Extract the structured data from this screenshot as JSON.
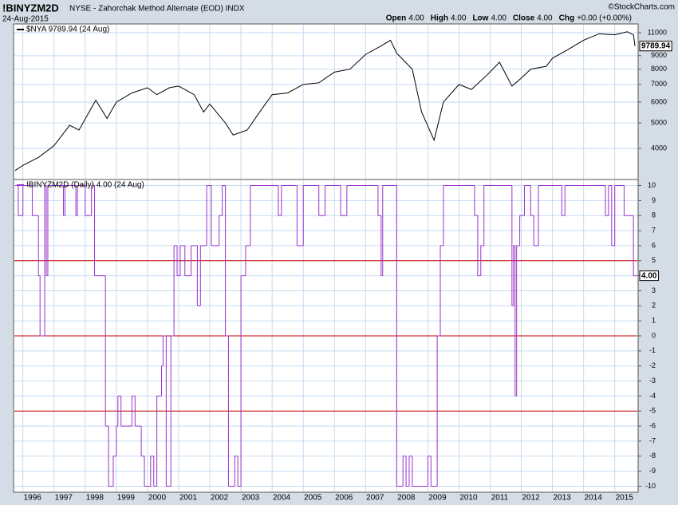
{
  "header": {
    "symbol": "!BINYZM2D",
    "description": "NYSE - Zahorchak Method Alternate (EOD) INDX",
    "date": "24-Aug-2015",
    "credit": "©StockCharts.com",
    "quote": [
      {
        "label": "Open",
        "value": "4.00"
      },
      {
        "label": "High",
        "value": "4.00"
      },
      {
        "label": "Low",
        "value": "4.00"
      },
      {
        "label": "Close",
        "value": "4.00"
      },
      {
        "label": "Chg",
        "value": "+0.00 (+0.00%)"
      }
    ]
  },
  "chart_data": [
    {
      "type": "line",
      "log_scale": true,
      "grid": true,
      "xlim": [
        1995.7,
        2015.75
      ],
      "xticks": [
        1996,
        1997,
        1998,
        1999,
        2000,
        2001,
        2002,
        2003,
        2004,
        2005,
        2006,
        2007,
        2008,
        2009,
        2010,
        2011,
        2012,
        2013,
        2014,
        2015
      ],
      "ylim": [
        3050,
        11880
      ],
      "yticks": [
        4000,
        5000,
        6000,
        7000,
        8000,
        9000,
        11000
      ],
      "last_label": "9789.94",
      "series": [
        {
          "name": "$NYA 9789.94 (24 Aug)",
          "color": "#000000",
          "x": [
            1995.75,
            1996.0,
            1996.5,
            1997.0,
            1997.5,
            1997.8,
            1998.34,
            1998.7,
            1999.0,
            1999.5,
            2000.0,
            2000.3,
            2000.7,
            2001.0,
            2001.5,
            2001.8,
            2002.0,
            2002.5,
            2002.75,
            2003.2,
            2003.6,
            2004.0,
            2004.5,
            2005.0,
            2005.5,
            2006.0,
            2006.5,
            2007.0,
            2007.5,
            2007.8,
            2008.0,
            2008.5,
            2008.8,
            2009.2,
            2009.5,
            2010.0,
            2010.4,
            2010.9,
            2011.3,
            2011.7,
            2012.0,
            2012.3,
            2012.8,
            2013.0,
            2013.5,
            2014.0,
            2014.5,
            2015.0,
            2015.4,
            2015.6,
            2015.65
          ],
          "values": [
            3300,
            3450,
            3700,
            4100,
            4900,
            4700,
            6100,
            5200,
            6000,
            6500,
            6800,
            6400,
            6800,
            6900,
            6400,
            5500,
            5900,
            5000,
            4500,
            4700,
            5500,
            6400,
            6500,
            7000,
            7100,
            7800,
            8000,
            9100,
            9800,
            10300,
            9200,
            8000,
            5500,
            4300,
            6000,
            7000,
            6700,
            7600,
            8500,
            6900,
            7400,
            8000,
            8200,
            8800,
            9500,
            10300,
            10900,
            10800,
            11100,
            10800,
            9789.94
          ]
        }
      ]
    },
    {
      "type": "step",
      "grid": true,
      "xlim": [
        1995.7,
        2015.75
      ],
      "xticks": [
        1996,
        1997,
        1998,
        1999,
        2000,
        2001,
        2002,
        2003,
        2004,
        2005,
        2006,
        2007,
        2008,
        2009,
        2010,
        2011,
        2012,
        2013,
        2014,
        2015
      ],
      "ylim": [
        -10.4,
        10.4
      ],
      "yticks": [
        -10,
        -9,
        -8,
        -7,
        -6,
        -5,
        -4,
        -3,
        -2,
        -1,
        0,
        1,
        2,
        3,
        4,
        5,
        6,
        7,
        8,
        9,
        10
      ],
      "reference_lines": [
        5,
        0,
        -5
      ],
      "reference_color": "#cc0000",
      "last_label": "4.00",
      "series": [
        {
          "name": "!BINYZM2D (Daily) 4.00 (24 Aug)",
          "color": "#9933cc",
          "x": [
            1995.75,
            1995.85,
            1996.0,
            1996.3,
            1996.5,
            1996.55,
            1996.7,
            1996.75,
            1996.8,
            1997.3,
            1997.35,
            1997.7,
            1997.75,
            1998.0,
            1998.2,
            1998.3,
            1998.65,
            1998.75,
            1998.9,
            1999.0,
            1999.05,
            1999.15,
            1999.5,
            1999.6,
            1999.8,
            1999.9,
            2000.1,
            2000.2,
            2000.3,
            2000.45,
            2000.5,
            2000.6,
            2000.75,
            2000.85,
            2000.95,
            2001.05,
            2001.2,
            2001.4,
            2001.6,
            2001.7,
            2001.9,
            2002.05,
            2002.3,
            2002.4,
            2002.5,
            2002.6,
            2002.8,
            2002.9,
            2003.0,
            2003.15,
            2003.3,
            2004.2,
            2004.3,
            2004.8,
            2005.0,
            2005.5,
            2005.7,
            2006.2,
            2006.4,
            2007.4,
            2007.5,
            2007.55,
            2008.0,
            2008.2,
            2008.3,
            2008.4,
            2008.5,
            2009.0,
            2009.1,
            2009.3,
            2009.4,
            2009.5,
            2010.5,
            2010.6,
            2010.7,
            2010.8,
            2011.7,
            2011.75,
            2011.8,
            2011.85,
            2011.95,
            2012.1,
            2012.3,
            2012.4,
            2012.55,
            2013.3,
            2013.4,
            2014.7,
            2014.8,
            2014.9,
            2015.0,
            2015.3,
            2015.6
          ],
          "values": [
            10,
            8,
            10,
            8,
            4,
            0,
            10,
            4,
            10,
            8,
            10,
            8,
            10,
            8,
            10,
            4,
            -6,
            -10,
            -8,
            -6,
            -4,
            -6,
            -4,
            -6,
            -8,
            -10,
            -8,
            -10,
            -4,
            -2,
            0,
            -10,
            0,
            6,
            4,
            6,
            4,
            6,
            2,
            6,
            10,
            6,
            8,
            10,
            0,
            -10,
            -8,
            -10,
            4,
            6,
            10,
            8,
            10,
            6,
            10,
            8,
            10,
            8,
            10,
            8,
            4,
            10,
            -10,
            -8,
            -10,
            -8,
            -10,
            -8,
            -10,
            0,
            6,
            10,
            8,
            4,
            6,
            10,
            2,
            6,
            -4,
            6,
            8,
            10,
            8,
            6,
            10,
            8,
            10,
            8,
            10,
            6,
            10,
            8,
            4
          ]
        }
      ]
    }
  ]
}
